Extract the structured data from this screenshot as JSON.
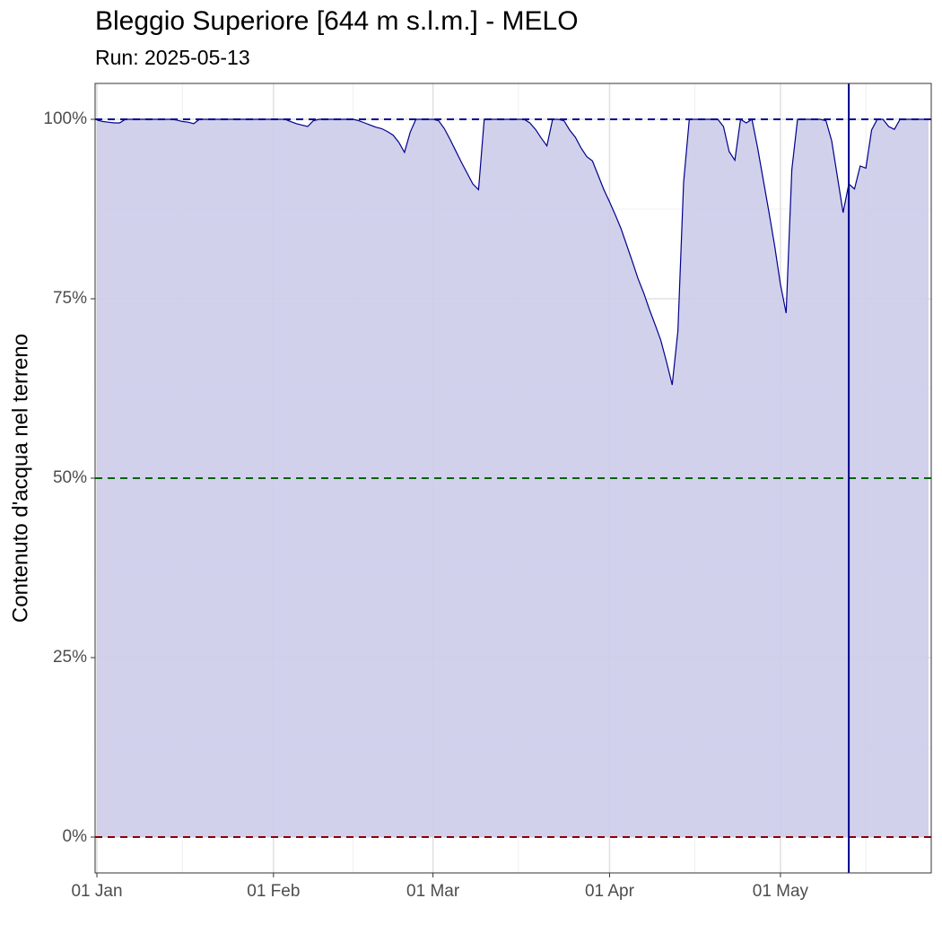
{
  "chart_data": {
    "type": "area",
    "title": "Bleggio Superiore [644 m s.l.m.] - MELO",
    "subtitle": "Run: 2025-05-13",
    "y_label": "Contenuto d'acqua nel terreno",
    "x": [
      "01 Jan",
      "02 Jan",
      "03 Jan",
      "04 Jan",
      "05 Jan",
      "06 Jan",
      "07 Jan",
      "08 Jan",
      "09 Jan",
      "10 Jan",
      "11 Jan",
      "12 Jan",
      "13 Jan",
      "14 Jan",
      "15 Jan",
      "16 Jan",
      "17 Jan",
      "18 Jan",
      "19 Jan",
      "20 Jan",
      "21 Jan",
      "22 Jan",
      "23 Jan",
      "24 Jan",
      "25 Jan",
      "26 Jan",
      "27 Jan",
      "28 Jan",
      "29 Jan",
      "30 Jan",
      "31 Jan",
      "01 Feb",
      "02 Feb",
      "03 Feb",
      "04 Feb",
      "05 Feb",
      "06 Feb",
      "07 Feb",
      "08 Feb",
      "09 Feb",
      "10 Feb",
      "11 Feb",
      "12 Feb",
      "13 Feb",
      "14 Feb",
      "15 Feb",
      "16 Feb",
      "17 Feb",
      "18 Feb",
      "19 Feb",
      "20 Feb",
      "21 Feb",
      "22 Feb",
      "23 Feb",
      "24 Feb",
      "25 Feb",
      "26 Feb",
      "27 Feb",
      "28 Feb",
      "01 Mar",
      "02 Mar",
      "03 Mar",
      "04 Mar",
      "05 Mar",
      "06 Mar",
      "07 Mar",
      "08 Mar",
      "09 Mar",
      "10 Mar",
      "11 Mar",
      "12 Mar",
      "13 Mar",
      "14 Mar",
      "15 Mar",
      "16 Mar",
      "17 Mar",
      "18 Mar",
      "19 Mar",
      "20 Mar",
      "21 Mar",
      "22 Mar",
      "23 Mar",
      "24 Mar",
      "25 Mar",
      "26 Mar",
      "27 Mar",
      "28 Mar",
      "29 Mar",
      "30 Mar",
      "31 Mar",
      "01 Apr",
      "02 Apr",
      "03 Apr",
      "04 Apr",
      "05 Apr",
      "06 Apr",
      "07 Apr",
      "08 Apr",
      "09 Apr",
      "10 Apr",
      "11 Apr",
      "12 Apr",
      "13 Apr",
      "14 Apr",
      "15 Apr",
      "16 Apr",
      "17 Apr",
      "18 Apr",
      "19 Apr",
      "20 Apr",
      "21 Apr",
      "22 Apr",
      "23 Apr",
      "24 Apr",
      "25 Apr",
      "26 Apr",
      "27 Apr",
      "28 Apr",
      "29 Apr",
      "30 Apr",
      "01 May",
      "02 May",
      "03 May",
      "04 May",
      "05 May",
      "06 May",
      "07 May",
      "08 May",
      "09 May",
      "10 May",
      "11 May",
      "12 May",
      "13 May",
      "14 May",
      "15 May",
      "16 May",
      "17 May",
      "18 May",
      "19 May",
      "20 May",
      "21 May",
      "22 May",
      "23 May",
      "24 May",
      "25 May",
      "26 May",
      "27 May"
    ],
    "values": [
      99.9,
      99.7,
      99.6,
      99.5,
      99.5,
      100,
      100,
      100,
      100,
      100,
      100,
      100,
      100,
      100,
      99.9,
      99.7,
      99.6,
      99.4,
      100,
      100,
      100,
      100,
      100,
      100,
      100,
      100,
      100,
      100,
      100,
      100,
      100,
      100,
      100,
      100,
      99.7,
      99.4,
      99.2,
      99.0,
      99.8,
      100,
      100,
      100,
      100,
      100,
      100,
      100,
      99.8,
      99.5,
      99.2,
      98.9,
      98.7,
      98.3,
      97.8,
      96.8,
      95.4,
      98.2,
      100,
      100,
      100,
      100,
      99.8,
      98.7,
      97.2,
      95.6,
      94.0,
      92.5,
      91.0,
      90.2,
      100,
      100,
      100,
      100,
      100,
      100,
      100,
      100,
      99.5,
      98.6,
      97.4,
      96.3,
      100,
      100,
      99.8,
      98.5,
      97.5,
      96.0,
      94.8,
      94.2,
      92.2,
      90.2,
      88.5,
      86.7,
      84.8,
      82.5,
      80.2,
      77.8,
      75.8,
      73.5,
      71.4,
      69.2,
      66.2,
      63.0,
      70.5,
      91.2,
      100,
      100,
      100,
      100,
      100,
      100,
      99.0,
      95.5,
      94.3,
      100,
      99.5,
      100,
      96.0,
      91.5,
      87.0,
      82.3,
      77.0,
      73.0,
      93.0,
      100,
      100,
      100,
      100,
      100,
      99.8,
      97.0,
      92.0,
      87.0,
      91.0,
      90.3,
      93.5,
      93.2,
      98.5,
      100,
      100,
      99.0,
      98.6,
      100,
      100,
      100,
      100,
      100,
      100
    ],
    "color": "#00008b",
    "fill": "#ccccea",
    "xlim": [
      "01 Jan",
      "27 May"
    ],
    "xticks": [
      {
        "value": "01 Jan",
        "label": "01 Jan"
      },
      {
        "value": "01 Feb",
        "label": "01 Feb"
      },
      {
        "value": "01 Mar",
        "label": "01 Mar"
      },
      {
        "value": "01 Apr",
        "label": "01 Apr"
      },
      {
        "value": "01 May",
        "label": "01 May"
      }
    ],
    "xminor": [
      "16 Jan",
      "15 Feb",
      "16 Mar",
      "16 Apr",
      "16 May"
    ],
    "ylim": [
      -5,
      105
    ],
    "yticks": [
      {
        "value": 0,
        "label": "0%"
      },
      {
        "value": 25,
        "label": "25%"
      },
      {
        "value": 50,
        "label": "50%"
      },
      {
        "value": 75,
        "label": "75%"
      },
      {
        "value": 100,
        "label": "100%"
      }
    ],
    "yminor": [
      12.5,
      37.5,
      62.5,
      87.5
    ],
    "grid": true,
    "hlines": [
      {
        "value": 100,
        "color": "#00008b"
      },
      {
        "value": 50,
        "color": "#006400"
      },
      {
        "value": 0,
        "color": "#8b0000"
      }
    ],
    "vline": {
      "value": "13 May",
      "color": "#00008b"
    }
  }
}
